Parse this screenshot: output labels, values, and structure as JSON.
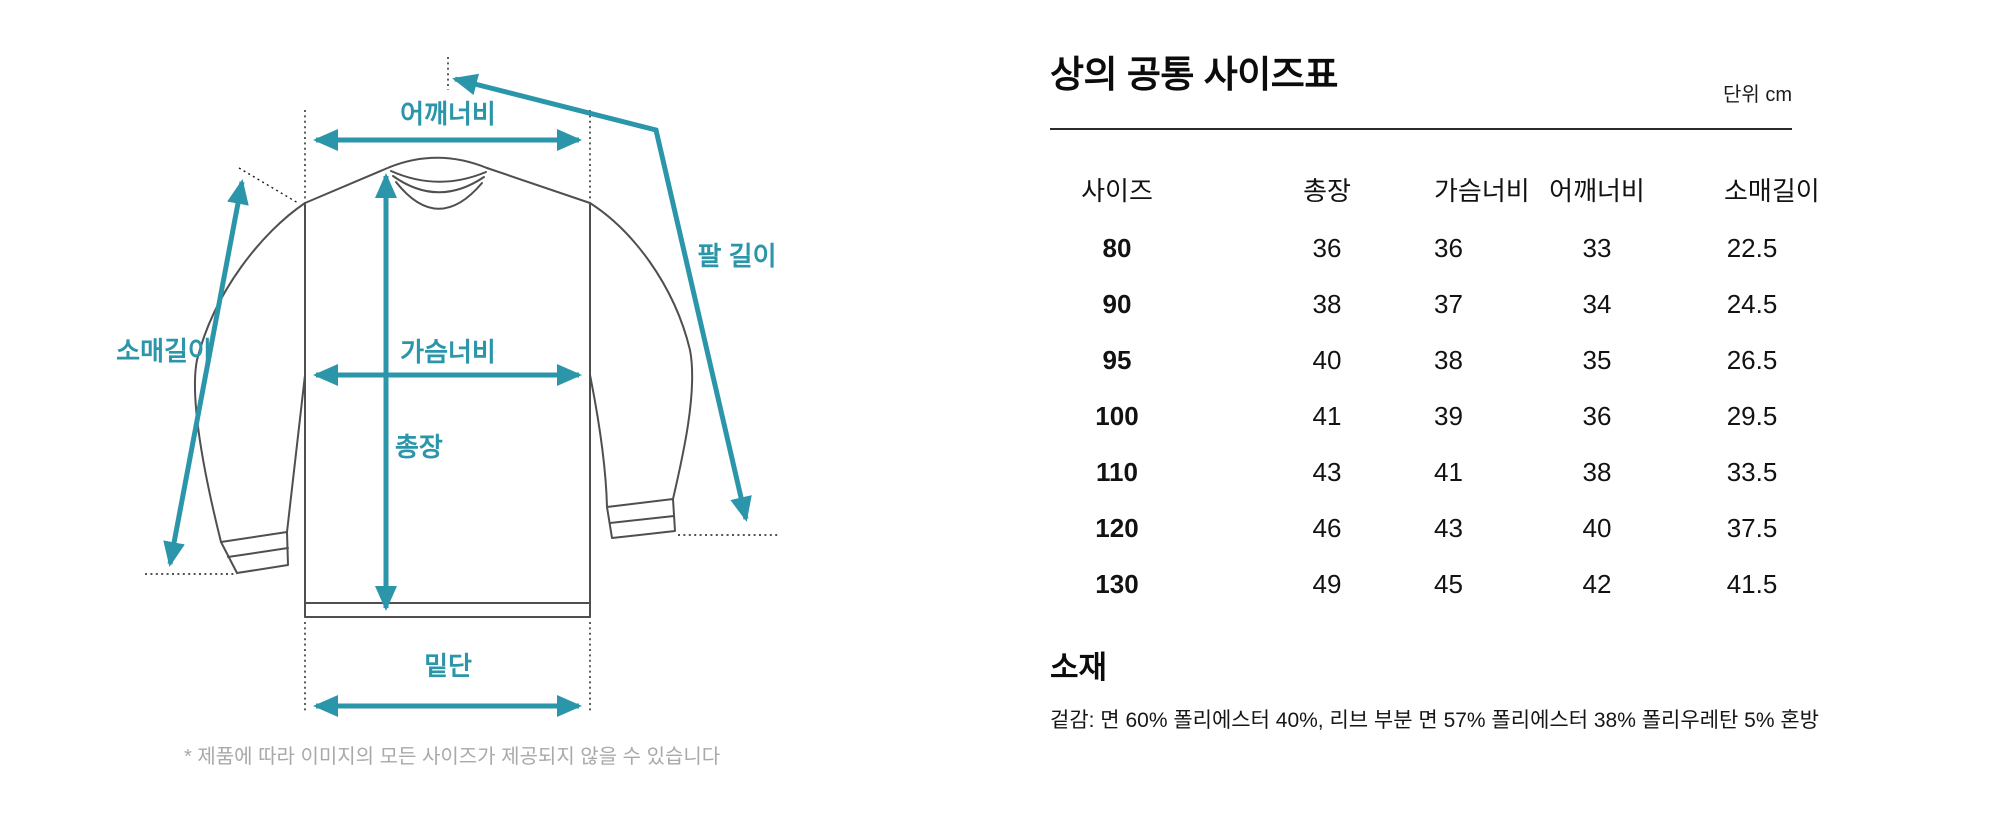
{
  "diagram": {
    "labels": {
      "shoulder": "어깨너비",
      "arm": "팔 길이",
      "sleeve": "소매길이",
      "chest": "가슴너비",
      "length": "총장",
      "hem": "밑단"
    },
    "note": "* 제품에 따라 이미지의 모든 사이즈가 제공되지 않을 수 있습니다",
    "accent_color": "#2B96AA",
    "outline_color": "#4f4f4f"
  },
  "size_table": {
    "title": "상의 공통 사이즈표",
    "unit": "단위 cm",
    "columns": [
      "사이즈",
      "총장",
      "가슴너비",
      "어깨너비",
      "소매길이"
    ],
    "rows": [
      {
        "size": "80",
        "values": [
          "36",
          "36",
          "33",
          "22.5"
        ]
      },
      {
        "size": "90",
        "values": [
          "38",
          "37",
          "34",
          "24.5"
        ]
      },
      {
        "size": "95",
        "values": [
          "40",
          "38",
          "35",
          "26.5"
        ]
      },
      {
        "size": "100",
        "values": [
          "41",
          "39",
          "36",
          "29.5"
        ]
      },
      {
        "size": "110",
        "values": [
          "43",
          "41",
          "38",
          "33.5"
        ]
      },
      {
        "size": "120",
        "values": [
          "46",
          "43",
          "40",
          "37.5"
        ]
      },
      {
        "size": "130",
        "values": [
          "49",
          "45",
          "42",
          "41.5"
        ]
      }
    ]
  },
  "material": {
    "heading": "소재",
    "description": "겉감: 면 60% 폴리에스터 40%, 리브 부분 면 57% 폴리에스터 38% 폴리우레탄 5% 혼방"
  }
}
